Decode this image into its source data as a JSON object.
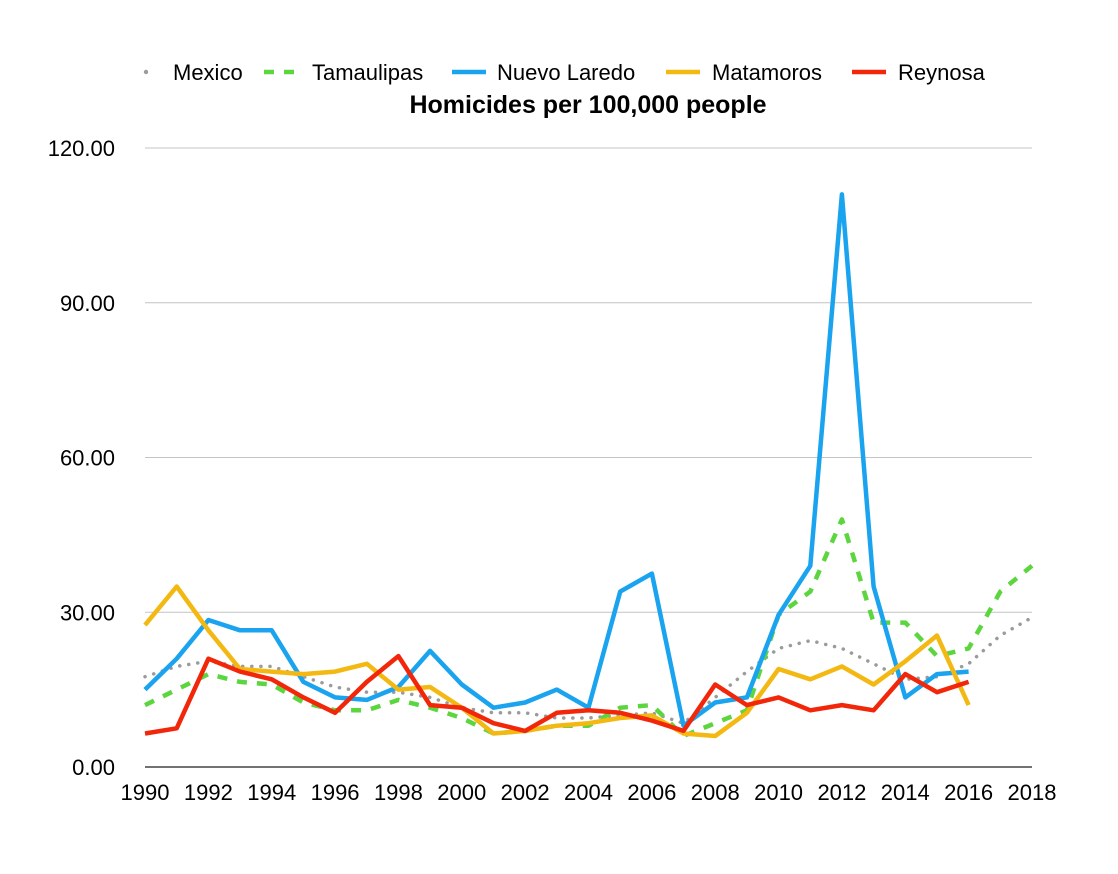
{
  "chart_data": {
    "type": "line",
    "title": "Homicides per 100,000 people",
    "xlabel": "",
    "ylabel": "",
    "ylim": [
      0,
      120
    ],
    "yticks": [
      "0.00",
      "30.00",
      "60.00",
      "90.00",
      "120.00"
    ],
    "xticks": [
      "1990",
      "1992",
      "1994",
      "1996",
      "1998",
      "2000",
      "2002",
      "2004",
      "2006",
      "2008",
      "2010",
      "2012",
      "2014",
      "2016",
      "2018"
    ],
    "xlim": [
      1990,
      2018
    ],
    "grid": true,
    "legend_position": "top",
    "series": [
      {
        "name": "Mexico",
        "color": "#9b9b9b",
        "style": "dotted",
        "x": [
          1990,
          1991,
          1992,
          1993,
          1994,
          1995,
          1996,
          1997,
          1998,
          1999,
          2000,
          2001,
          2002,
          2003,
          2004,
          2005,
          2006,
          2007,
          2008,
          2009,
          2010,
          2011,
          2012,
          2013,
          2014,
          2015,
          2016,
          2017,
          2018
        ],
        "values": [
          17.5,
          19.5,
          20.5,
          19.5,
          19.5,
          17.5,
          15.5,
          14.5,
          14.5,
          13.5,
          11.5,
          10.5,
          10.5,
          9.5,
          9.5,
          10,
          10.5,
          8.5,
          13.5,
          18.5,
          23,
          24.5,
          23,
          20,
          17,
          17.5,
          20,
          25.5,
          29
        ]
      },
      {
        "name": "Tamaulipas",
        "color": "#5cd63e",
        "style": "dashed",
        "x": [
          1990,
          1991,
          1992,
          1993,
          1994,
          1995,
          1996,
          1997,
          1998,
          1999,
          2000,
          2001,
          2002,
          2003,
          2004,
          2005,
          2006,
          2007,
          2008,
          2009,
          2010,
          2011,
          2012,
          2013,
          2014,
          2015,
          2016,
          2017,
          2018
        ],
        "values": [
          12,
          15,
          18,
          16.5,
          16,
          12.5,
          11,
          11,
          13,
          11.5,
          9.5,
          6.5,
          7,
          8,
          8,
          11.5,
          12,
          6,
          8.5,
          11,
          29.5,
          34,
          48,
          28,
          28,
          21.5,
          23,
          34,
          39
        ]
      },
      {
        "name": "Nuevo Laredo",
        "color": "#1aa3ef",
        "style": "solid",
        "x": [
          1990,
          1991,
          1992,
          1993,
          1994,
          1995,
          1996,
          1997,
          1998,
          1999,
          2000,
          2001,
          2002,
          2003,
          2004,
          2005,
          2006,
          2007,
          2008,
          2009,
          2010,
          2011,
          2012,
          2013,
          2014,
          2015,
          2016
        ],
        "values": [
          15,
          21,
          28.5,
          26.5,
          26.5,
          16.5,
          13.5,
          13,
          15.5,
          22.5,
          16,
          11.5,
          12.5,
          15,
          11.5,
          34,
          37.5,
          8,
          12.5,
          13.5,
          29.5,
          39,
          111,
          35,
          13.5,
          18,
          18.5
        ]
      },
      {
        "name": "Matamoros",
        "color": "#f4b813",
        "style": "solid",
        "x": [
          1990,
          1991,
          1992,
          1993,
          1994,
          1995,
          1996,
          1997,
          1998,
          1999,
          2000,
          2001,
          2002,
          2003,
          2004,
          2005,
          2006,
          2007,
          2008,
          2009,
          2010,
          2011,
          2012,
          2013,
          2014,
          2015,
          2016
        ],
        "values": [
          27.5,
          35,
          26.5,
          19,
          18.5,
          18,
          18.5,
          20,
          15,
          15.5,
          11.5,
          6.5,
          7,
          8,
          8.5,
          9.5,
          10,
          6.5,
          6,
          10.5,
          19,
          17,
          19.5,
          16,
          20.5,
          25.5,
          12
        ]
      },
      {
        "name": "Reynosa",
        "color": "#f2270a",
        "style": "solid",
        "x": [
          1990,
          1991,
          1992,
          1993,
          1994,
          1995,
          1996,
          1997,
          1998,
          1999,
          2000,
          2001,
          2002,
          2003,
          2004,
          2005,
          2006,
          2007,
          2008,
          2009,
          2010,
          2011,
          2012,
          2013,
          2014,
          2015,
          2016
        ],
        "values": [
          6.5,
          7.5,
          21,
          18.5,
          17,
          13.5,
          10.5,
          16.5,
          21.5,
          12,
          11.5,
          8.5,
          7,
          10.5,
          11,
          10.5,
          9,
          7,
          16,
          12,
          13.5,
          11,
          12,
          11,
          18,
          14.5,
          16.5
        ]
      }
    ]
  }
}
